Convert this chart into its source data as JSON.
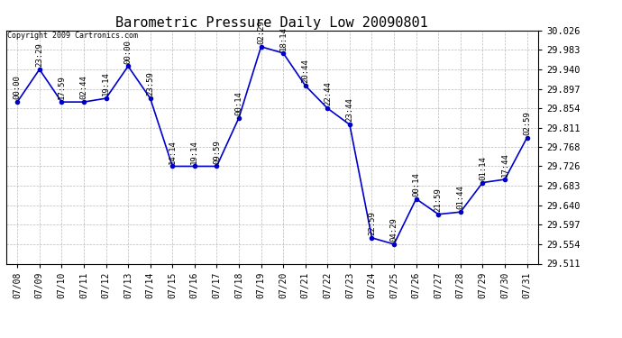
{
  "title": "Barometric Pressure Daily Low 20090801",
  "copyright": "Copyright 2009 Cartronics.com",
  "x_labels": [
    "07/08",
    "07/09",
    "07/10",
    "07/11",
    "07/12",
    "07/13",
    "07/14",
    "07/15",
    "07/16",
    "07/17",
    "07/18",
    "07/19",
    "07/20",
    "07/21",
    "07/22",
    "07/23",
    "07/24",
    "07/25",
    "07/26",
    "07/27",
    "07/28",
    "07/29",
    "07/30",
    "07/31"
  ],
  "y_values": [
    29.868,
    29.94,
    29.868,
    29.868,
    29.876,
    29.947,
    29.876,
    29.726,
    29.726,
    29.726,
    29.833,
    29.99,
    29.976,
    29.904,
    29.854,
    29.818,
    29.568,
    29.554,
    29.654,
    29.62,
    29.625,
    29.69,
    29.697,
    29.789
  ],
  "annotations": [
    "00:00",
    "23:29",
    "17:59",
    "02:44",
    "19:14",
    "00:00",
    "23:59",
    "14:14",
    "19:14",
    "09:59",
    "00:14",
    "02:29",
    "18:14",
    "20:44",
    "22:44",
    "23:44",
    "22:59",
    "04:29",
    "00:14",
    "21:59",
    "01:44",
    "01:14",
    "17:44",
    "02:59"
  ],
  "line_color": "#0000cc",
  "marker_color": "#0000cc",
  "background_color": "#ffffff",
  "grid_color": "#aaaaaa",
  "y_min": 29.511,
  "y_max": 30.026,
  "y_ticks": [
    29.511,
    29.554,
    29.597,
    29.64,
    29.683,
    29.726,
    29.768,
    29.811,
    29.854,
    29.897,
    29.94,
    29.983,
    30.026
  ],
  "title_fontsize": 11,
  "annotation_fontsize": 6.5,
  "xlabel_fontsize": 7,
  "ylabel_fontsize": 7.5
}
